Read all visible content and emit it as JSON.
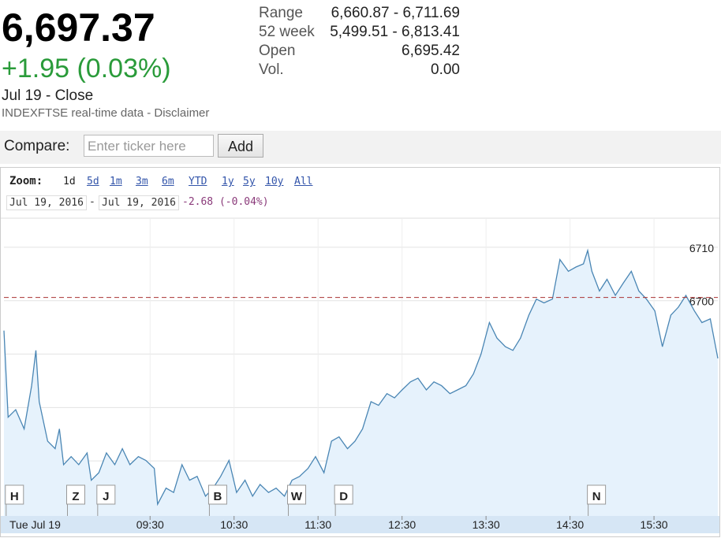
{
  "header": {
    "price": "6,697.37",
    "change": "+1.95 (0.03%)",
    "close_label": "Jul 19 - Close",
    "source": "INDEXFTSE real-time data - ",
    "disclaimer": "Disclaimer"
  },
  "stats": [
    {
      "label": "Range",
      "value": "6,660.87 - 6,711.69"
    },
    {
      "label": "52 week",
      "value": "5,499.51 - 6,813.41"
    },
    {
      "label": "Open",
      "value": "6,695.42"
    },
    {
      "label": "Vol.",
      "value": "0.00"
    }
  ],
  "compare": {
    "label": "Compare:",
    "placeholder": "Enter ticker here",
    "button": "Add"
  },
  "zoom": {
    "label": "Zoom:",
    "options": [
      "1d",
      "5d",
      "1m",
      "3m",
      "6m",
      "YTD",
      "1y",
      "5y",
      "10y",
      "All"
    ]
  },
  "range": {
    "from": "Jul 19, 2016",
    "separator": "-",
    "to": "Jul 19, 2016",
    "change": "-2.68 (-0.04%)"
  },
  "chart_data": {
    "type": "line",
    "color": "#4a86b4",
    "fill": "#e6f2fc",
    "x": [
      7.76,
      7.81,
      7.9,
      8.0,
      8.09,
      8.14,
      8.18,
      8.28,
      8.37,
      8.42,
      8.47,
      8.56,
      8.65,
      8.75,
      8.8,
      8.89,
      8.98,
      9.08,
      9.17,
      9.26,
      9.36,
      9.45,
      9.55,
      9.59,
      9.69,
      9.78,
      9.88,
      9.97,
      10.06,
      10.16,
      10.25,
      10.34,
      10.44,
      10.53,
      10.63,
      10.72,
      10.81,
      10.91,
      11.0,
      11.1,
      11.19,
      11.28,
      11.38,
      11.47,
      11.57,
      11.66,
      11.75,
      11.85,
      11.94,
      12.03,
      12.13,
      12.22,
      12.32,
      12.41,
      12.5,
      12.6,
      12.69,
      12.79,
      12.88,
      12.97,
      13.07,
      13.16,
      13.26,
      13.35,
      13.44,
      13.54,
      13.63,
      13.73,
      13.82,
      13.91,
      14.01,
      14.1,
      14.19,
      14.29,
      14.38,
      14.48,
      14.57,
      14.66,
      14.71,
      14.76,
      14.85,
      14.94,
      15.04,
      15.13,
      15.23,
      15.32,
      15.41,
      15.51,
      15.6,
      15.7,
      15.79,
      15.88,
      15.98,
      16.07,
      16.17,
      16.26
    ],
    "values": [
      6694.4,
      6678.2,
      6679.6,
      6676,
      6684.1,
      6690.7,
      6681.1,
      6673.7,
      6672.3,
      6676,
      6669.3,
      6670.8,
      6669.3,
      6671.5,
      6666.4,
      6667.8,
      6671.5,
      6669.3,
      6672.3,
      6669.3,
      6670.8,
      6670.1,
      6668.6,
      6661.9,
      6664.9,
      6664.1,
      6669.3,
      6666.4,
      6667.1,
      6663.4,
      6664.9,
      6667.1,
      6670.1,
      6664.1,
      6666.4,
      6663.4,
      6665.6,
      6664.1,
      6664.9,
      6663.4,
      6666.4,
      6667.1,
      6668.6,
      6670.8,
      6667.8,
      6673.7,
      6674.5,
      6672.3,
      6673.7,
      6676,
      6681.1,
      6680.4,
      6682.6,
      6681.8,
      6683.3,
      6684.8,
      6685.5,
      6683.3,
      6684.8,
      6684.1,
      6682.6,
      6683.3,
      6684.1,
      6686.3,
      6690,
      6695.9,
      6693,
      6691.4,
      6690.7,
      6693,
      6697.3,
      6700.3,
      6699.6,
      6700.3,
      6707.7,
      6705.5,
      6706.3,
      6706.9,
      6709.4,
      6705.5,
      6701.8,
      6704,
      6701,
      6703.2,
      6705.5,
      6701.8,
      6700.3,
      6698.1,
      6691.4,
      6697.3,
      6698.8,
      6701,
      6698.1,
      6695.9,
      6696.6,
      6689.2
    ],
    "xlim": [
      7.76,
      16.26
    ],
    "ylim": [
      6659.7,
      6715.3
    ],
    "yticks": [
      6670,
      6680,
      6690,
      6700,
      6710
    ],
    "start_label": "Tue Jul 19",
    "xticks": [
      {
        "value": 9.5,
        "label": "09:30"
      },
      {
        "value": 10.5,
        "label": "10:30"
      },
      {
        "value": 11.5,
        "label": "11:30"
      },
      {
        "value": 12.5,
        "label": "12:30"
      },
      {
        "value": 13.5,
        "label": "13:30"
      },
      {
        "value": 14.5,
        "label": "14:30"
      },
      {
        "value": 15.5,
        "label": "15:30"
      }
    ],
    "reference_line": 6700.6,
    "grid": true,
    "events": [
      {
        "label": "H",
        "x": 7.88
      },
      {
        "label": "Z",
        "x": 8.61
      },
      {
        "label": "J",
        "x": 8.97
      },
      {
        "label": "B",
        "x": 10.3
      },
      {
        "label": "W",
        "x": 11.24
      },
      {
        "label": "D",
        "x": 11.8
      },
      {
        "label": "N",
        "x": 14.81
      }
    ]
  }
}
